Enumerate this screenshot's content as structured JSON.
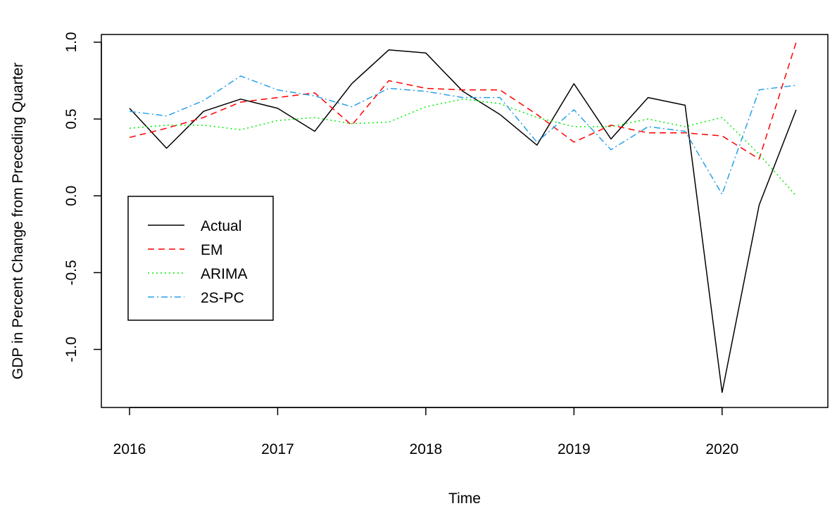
{
  "chart_data": {
    "type": "line",
    "xlabel": "Time",
    "ylabel": "GDP in Percent Change from Preceding Quarter",
    "xlim": [
      2016,
      2020.5
    ],
    "ylim": [
      -1.3,
      1.05
    ],
    "x_ticks": [
      2016,
      2017,
      2018,
      2019,
      2020
    ],
    "x_tick_labels": [
      "2016",
      "2017",
      "2018",
      "2019",
      "2020"
    ],
    "y_ticks": [
      -1.0,
      -0.5,
      0.0,
      0.5,
      1.0
    ],
    "y_tick_labels": [
      "-1.0",
      "-0.5",
      "0.0",
      "0.5",
      "1.0"
    ],
    "grid": false,
    "legend_position": "left-middle",
    "x": [
      2016.0,
      2016.25,
      2016.5,
      2016.75,
      2017.0,
      2017.25,
      2017.5,
      2017.75,
      2018.0,
      2018.25,
      2018.5,
      2018.75,
      2019.0,
      2019.25,
      2019.5,
      2019.75,
      2020.0,
      2020.25,
      2020.5
    ],
    "series": [
      {
        "name": "Actual",
        "color": "#000000",
        "dash": "solid",
        "values": [
          0.57,
          0.31,
          0.55,
          0.63,
          0.57,
          0.42,
          0.73,
          0.95,
          0.93,
          0.68,
          0.53,
          0.33,
          0.73,
          0.37,
          0.64,
          0.59,
          -1.28,
          -0.06,
          0.56
        ]
      },
      {
        "name": "EM",
        "color": "#ff0000",
        "dash": "dashed",
        "values": [
          0.38,
          0.44,
          0.51,
          0.61,
          0.64,
          0.67,
          0.46,
          0.75,
          0.7,
          0.69,
          0.69,
          0.53,
          0.35,
          0.46,
          0.41,
          0.41,
          0.39,
          0.24,
          1.0
        ]
      },
      {
        "name": "ARIMA",
        "color": "#00ee00",
        "dash": "dotted",
        "values": [
          0.44,
          0.46,
          0.46,
          0.43,
          0.49,
          0.51,
          0.47,
          0.48,
          0.58,
          0.63,
          0.6,
          0.51,
          0.45,
          0.45,
          0.5,
          0.45,
          0.51,
          0.27,
          0.0
        ]
      },
      {
        "name": "2S-PC",
        "color": "#28a0e8",
        "dash": "dashdot",
        "values": [
          0.55,
          0.52,
          0.62,
          0.78,
          0.69,
          0.65,
          0.58,
          0.7,
          0.68,
          0.64,
          0.64,
          0.35,
          0.56,
          0.3,
          0.45,
          0.42,
          0.01,
          0.69,
          0.72
        ]
      }
    ]
  }
}
